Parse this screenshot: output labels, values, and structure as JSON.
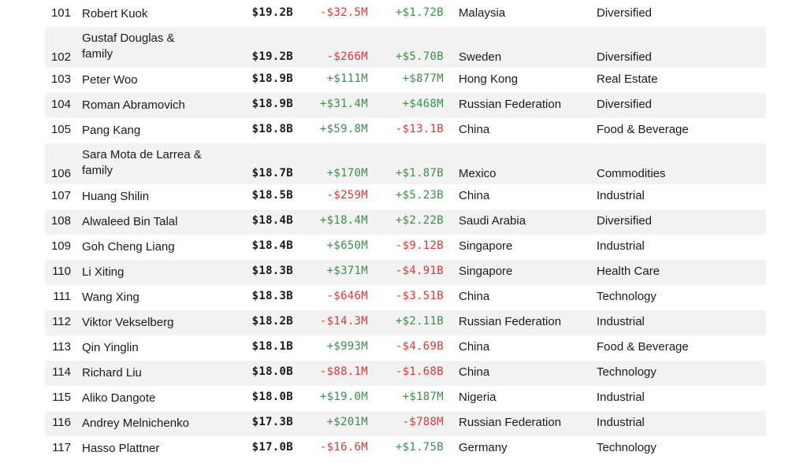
{
  "colors": {
    "positive": "#3e8b52",
    "negative": "#d33a3a",
    "row_shade": "#f2f2f2"
  },
  "rows": [
    {
      "rank": "101",
      "name": "Robert Kuok",
      "worth": "$19.2B",
      "last_change": "-$32.5M",
      "ytd_change": "+$1.72B",
      "country": "Malaysia",
      "industry": "Diversified"
    },
    {
      "rank": "102",
      "name": "Gustaf Douglas & family",
      "worth": "$19.2B",
      "last_change": "-$266M",
      "ytd_change": "+$5.70B",
      "country": "Sweden",
      "industry": "Diversified"
    },
    {
      "rank": "103",
      "name": "Peter Woo",
      "worth": "$18.9B",
      "last_change": "+$111M",
      "ytd_change": "+$877M",
      "country": "Hong Kong",
      "industry": "Real Estate"
    },
    {
      "rank": "104",
      "name": "Roman Abramovich",
      "worth": "$18.9B",
      "last_change": "+$31.4M",
      "ytd_change": "+$468M",
      "country": "Russian Federation",
      "industry": "Diversified"
    },
    {
      "rank": "105",
      "name": "Pang Kang",
      "worth": "$18.8B",
      "last_change": "+$59.8M",
      "ytd_change": "-$13.1B",
      "country": "China",
      "industry": "Food & Beverage"
    },
    {
      "rank": "106",
      "name": "Sara Mota de Larrea & family",
      "worth": "$18.7B",
      "last_change": "+$170M",
      "ytd_change": "+$1.87B",
      "country": "Mexico",
      "industry": "Commodities"
    },
    {
      "rank": "107",
      "name": "Huang Shilin",
      "worth": "$18.5B",
      "last_change": "-$259M",
      "ytd_change": "+$5.23B",
      "country": "China",
      "industry": "Industrial"
    },
    {
      "rank": "108",
      "name": "Alwaleed Bin Talal",
      "worth": "$18.4B",
      "last_change": "+$18.4M",
      "ytd_change": "+$2.22B",
      "country": "Saudi Arabia",
      "industry": "Diversified"
    },
    {
      "rank": "109",
      "name": "Goh Cheng Liang",
      "worth": "$18.4B",
      "last_change": "+$650M",
      "ytd_change": "-$9.12B",
      "country": "Singapore",
      "industry": "Industrial"
    },
    {
      "rank": "110",
      "name": "Li Xiting",
      "worth": "$18.3B",
      "last_change": "+$371M",
      "ytd_change": "-$4.91B",
      "country": "Singapore",
      "industry": "Health Care"
    },
    {
      "rank": "111",
      "name": "Wang Xing",
      "worth": "$18.3B",
      "last_change": "-$646M",
      "ytd_change": "-$3.51B",
      "country": "China",
      "industry": "Technology"
    },
    {
      "rank": "112",
      "name": "Viktor Vekselberg",
      "worth": "$18.2B",
      "last_change": "-$14.3M",
      "ytd_change": "+$2.11B",
      "country": "Russian Federation",
      "industry": "Industrial"
    },
    {
      "rank": "113",
      "name": "Qin Yinglin",
      "worth": "$18.1B",
      "last_change": "+$993M",
      "ytd_change": "-$4.69B",
      "country": "China",
      "industry": "Food & Beverage"
    },
    {
      "rank": "114",
      "name": "Richard Liu",
      "worth": "$18.0B",
      "last_change": "-$88.1M",
      "ytd_change": "-$1.68B",
      "country": "China",
      "industry": "Technology"
    },
    {
      "rank": "115",
      "name": "Aliko Dangote",
      "worth": "$18.0B",
      "last_change": "+$19.0M",
      "ytd_change": "+$187M",
      "country": "Nigeria",
      "industry": "Industrial"
    },
    {
      "rank": "116",
      "name": "Andrey Melnichenko",
      "worth": "$17.3B",
      "last_change": "+$201M",
      "ytd_change": "-$788M",
      "country": "Russian Federation",
      "industry": "Industrial"
    },
    {
      "rank": "117",
      "name": "Hasso Plattner",
      "worth": "$17.0B",
      "last_change": "-$16.6M",
      "ytd_change": "+$1.75B",
      "country": "Germany",
      "industry": "Technology"
    }
  ]
}
